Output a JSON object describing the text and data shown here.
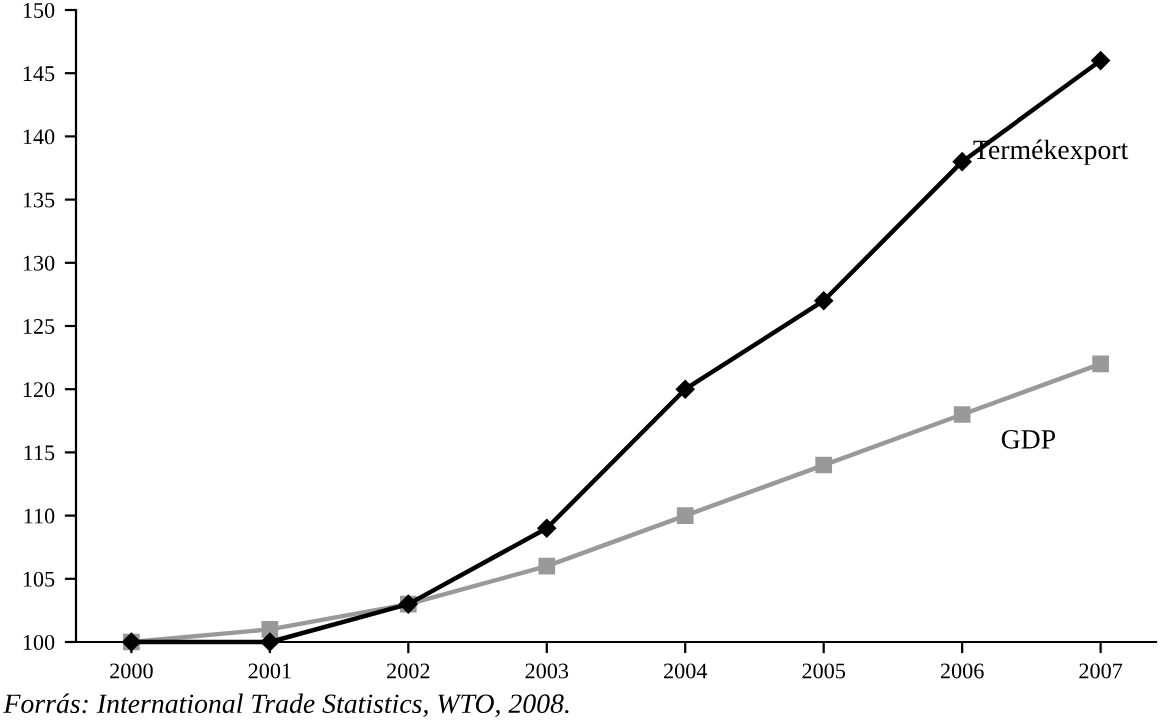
{
  "chart_data": {
    "type": "line",
    "categories": [
      "2000",
      "2001",
      "2002",
      "2003",
      "2004",
      "2005",
      "2006",
      "2007"
    ],
    "series": [
      {
        "name": "Termékexport",
        "color": "#000000",
        "marker": "diamond",
        "values": [
          100,
          100,
          103,
          109,
          120,
          127,
          138,
          146
        ]
      },
      {
        "name": "GDP",
        "color": "#999999",
        "marker": "square",
        "values": [
          100,
          101,
          103,
          106,
          110,
          114,
          118,
          122
        ]
      }
    ],
    "ylim": [
      100,
      150
    ],
    "yticks": [
      100,
      105,
      110,
      115,
      120,
      125,
      130,
      135,
      140,
      145,
      150
    ],
    "grid": false,
    "legend": false,
    "line_style": "solid",
    "annotations": [
      "Forrás: International Trade Statistics, WTO, 2008."
    ]
  }
}
